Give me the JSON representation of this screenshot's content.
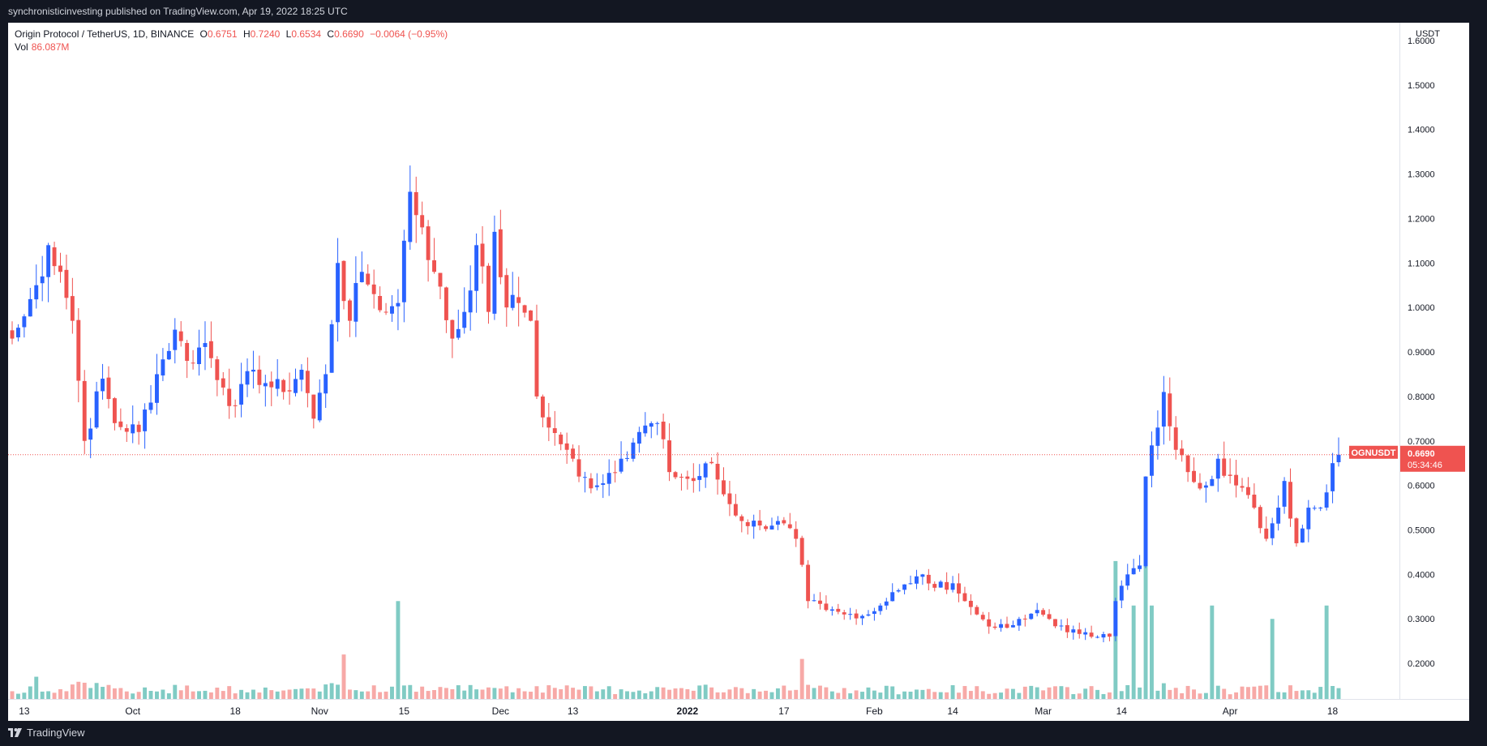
{
  "header": {
    "published_by": "synchronisticinvesting published on TradingView.com, Apr 19, 2022 18:25 UTC"
  },
  "legend": {
    "symbol": "Origin Protocol / TetherUS, 1D, BINANCE",
    "o_label": "O",
    "o_value": "0.6751",
    "h_label": "H",
    "h_value": "0.7240",
    "l_label": "L",
    "l_value": "0.6534",
    "c_label": "C",
    "c_value": "0.6690",
    "change": "−0.0064 (−0.95%)",
    "vol_label": "Vol",
    "vol_value": "86.087M"
  },
  "price_axis": {
    "currency": "USDT",
    "ticks": [
      "1.6000",
      "1.5000",
      "1.4000",
      "1.3000",
      "1.2000",
      "1.1000",
      "1.0000",
      "0.9000",
      "0.8000",
      "0.7000",
      "0.6000",
      "0.5000",
      "0.4000",
      "0.3000",
      "0.2000"
    ]
  },
  "price_tag": {
    "ticker": "OGNUSDT",
    "price": "0.6690",
    "countdown": "05:34:46"
  },
  "colors": {
    "up": "#2962ff",
    "down": "#ef5350",
    "vol_up": "#80cbc4",
    "vol_down": "#f7a9a7",
    "background": "#131722",
    "panel": "#ffffff"
  },
  "footer": {
    "brand": "TradingView"
  },
  "chart_data": {
    "type": "candlestick",
    "symbol": "OGNUSDT",
    "timeframe": "1D",
    "x_range": [
      "2021-09-11",
      "2022-04-19"
    ],
    "ylim": [
      0.12,
      1.64
    ],
    "x_ticks": [
      {
        "date": "2021-09-13",
        "label": "13"
      },
      {
        "date": "2021-10-01",
        "label": "Oct"
      },
      {
        "date": "2021-10-18",
        "label": "18"
      },
      {
        "date": "2021-11-01",
        "label": "Nov"
      },
      {
        "date": "2021-11-15",
        "label": "15"
      },
      {
        "date": "2021-12-01",
        "label": "Dec"
      },
      {
        "date": "2021-12-13",
        "label": "13"
      },
      {
        "date": "2022-01-01",
        "label": "2022"
      },
      {
        "date": "2022-01-17",
        "label": "17"
      },
      {
        "date": "2022-02-01",
        "label": "Feb"
      },
      {
        "date": "2022-02-14",
        "label": "14"
      },
      {
        "date": "2022-03-01",
        "label": "Mar"
      },
      {
        "date": "2022-03-14",
        "label": "14"
      },
      {
        "date": "2022-04-01",
        "label": "Apr"
      },
      {
        "date": "2022-04-18",
        "label": "18"
      }
    ],
    "current_price": 0.669,
    "close_anchors": [
      [
        "2021-09-11",
        0.93
      ],
      [
        "2021-09-13",
        0.98
      ],
      [
        "2021-09-15",
        1.05
      ],
      [
        "2021-09-17",
        1.14
      ],
      [
        "2021-09-19",
        1.08
      ],
      [
        "2021-09-21",
        0.97
      ],
      [
        "2021-09-23",
        0.7
      ],
      [
        "2021-09-26",
        0.84
      ],
      [
        "2021-09-28",
        0.74
      ],
      [
        "2021-10-02",
        0.72
      ],
      [
        "2021-10-05",
        0.85
      ],
      [
        "2021-10-08",
        0.95
      ],
      [
        "2021-10-10",
        0.88
      ],
      [
        "2021-10-13",
        0.92
      ],
      [
        "2021-10-16",
        0.82
      ],
      [
        "2021-10-18",
        0.78
      ],
      [
        "2021-10-21",
        0.86
      ],
      [
        "2021-10-23",
        0.83
      ],
      [
        "2021-10-26",
        0.81
      ],
      [
        "2021-10-29",
        0.86
      ],
      [
        "2021-10-31",
        0.75
      ],
      [
        "2021-11-02",
        0.85
      ],
      [
        "2021-11-04",
        1.1
      ],
      [
        "2021-11-06",
        0.97
      ],
      [
        "2021-11-08",
        1.08
      ],
      [
        "2021-11-10",
        1.03
      ],
      [
        "2021-11-12",
        0.99
      ],
      [
        "2021-11-14",
        1.01
      ],
      [
        "2021-11-15",
        1.15
      ],
      [
        "2021-11-16",
        1.26
      ],
      [
        "2021-11-18",
        1.18
      ],
      [
        "2021-11-20",
        1.08
      ],
      [
        "2021-11-23",
        0.93
      ],
      [
        "2021-11-25",
        0.99
      ],
      [
        "2021-11-27",
        1.14
      ],
      [
        "2021-11-29",
        0.99
      ],
      [
        "2021-11-30",
        1.17
      ],
      [
        "2021-12-02",
        1.0
      ],
      [
        "2021-12-04",
        1.01
      ],
      [
        "2021-12-06",
        0.97
      ],
      [
        "2021-12-07",
        0.8
      ],
      [
        "2021-12-09",
        0.73
      ],
      [
        "2021-12-12",
        0.68
      ],
      [
        "2021-12-14",
        0.62
      ],
      [
        "2021-12-17",
        0.6
      ],
      [
        "2021-12-21",
        0.66
      ],
      [
        "2021-12-24",
        0.72
      ],
      [
        "2021-12-27",
        0.74
      ],
      [
        "2021-12-29",
        0.63
      ],
      [
        "2022-01-02",
        0.61
      ],
      [
        "2022-01-05",
        0.65
      ],
      [
        "2022-01-07",
        0.58
      ],
      [
        "2022-01-10",
        0.52
      ],
      [
        "2022-01-13",
        0.51
      ],
      [
        "2022-01-16",
        0.52
      ],
      [
        "2022-01-19",
        0.48
      ],
      [
        "2022-01-21",
        0.34
      ],
      [
        "2022-01-24",
        0.32
      ],
      [
        "2022-01-27",
        0.31
      ],
      [
        "2022-01-31",
        0.31
      ],
      [
        "2022-02-02",
        0.33
      ],
      [
        "2022-02-04",
        0.36
      ],
      [
        "2022-02-07",
        0.38
      ],
      [
        "2022-02-09",
        0.4
      ],
      [
        "2022-02-11",
        0.37
      ],
      [
        "2022-02-14",
        0.38
      ],
      [
        "2022-02-16",
        0.34
      ],
      [
        "2022-02-18",
        0.31
      ],
      [
        "2022-02-21",
        0.28
      ],
      [
        "2022-02-23",
        0.28
      ],
      [
        "2022-02-26",
        0.3
      ],
      [
        "2022-02-28",
        0.32
      ],
      [
        "2022-03-02",
        0.3
      ],
      [
        "2022-03-05",
        0.27
      ],
      [
        "2022-03-08",
        0.27
      ],
      [
        "2022-03-12",
        0.26
      ],
      [
        "2022-03-13",
        0.34
      ],
      [
        "2022-03-15",
        0.4
      ],
      [
        "2022-03-17",
        0.42
      ],
      [
        "2022-03-18",
        0.62
      ],
      [
        "2022-03-20",
        0.73
      ],
      [
        "2022-03-21",
        0.81
      ],
      [
        "2022-03-23",
        0.68
      ],
      [
        "2022-03-25",
        0.63
      ],
      [
        "2022-03-28",
        0.6
      ],
      [
        "2022-03-30",
        0.66
      ],
      [
        "2022-04-02",
        0.6
      ],
      [
        "2022-04-05",
        0.55
      ],
      [
        "2022-04-07",
        0.48
      ],
      [
        "2022-04-09",
        0.55
      ],
      [
        "2022-04-10",
        0.61
      ],
      [
        "2022-04-12",
        0.47
      ],
      [
        "2022-04-14",
        0.55
      ],
      [
        "2022-04-16",
        0.55
      ],
      [
        "2022-04-18",
        0.65
      ],
      [
        "2022-04-19",
        0.669
      ]
    ],
    "volume_spikes": [
      [
        "2021-09-15",
        0.17
      ],
      [
        "2021-11-05",
        0.22
      ],
      [
        "2021-11-14",
        0.34
      ],
      [
        "2022-01-20",
        0.21
      ],
      [
        "2022-03-13",
        0.43
      ],
      [
        "2022-03-16",
        0.33
      ],
      [
        "2022-03-18",
        0.5
      ],
      [
        "2022-03-19",
        0.33
      ],
      [
        "2022-03-29",
        0.33
      ],
      [
        "2022-04-08",
        0.3
      ],
      [
        "2022-04-17",
        0.33
      ]
    ]
  }
}
